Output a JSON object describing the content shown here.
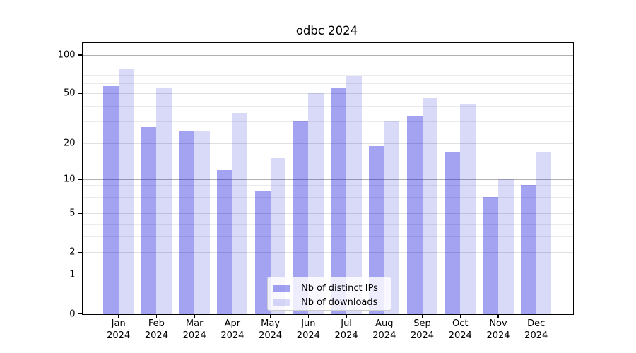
{
  "chart_data": {
    "type": "bar",
    "title": "odbc 2024",
    "categories": [
      "Jan",
      "Feb",
      "Mar",
      "Apr",
      "May",
      "Jun",
      "Jul",
      "Aug",
      "Sep",
      "Oct",
      "Nov",
      "Dec"
    ],
    "xtick_sublabel": "2024",
    "series": [
      {
        "name": "Nb of distinct IPs",
        "color": "rgba(0,0,220,0.36)",
        "color_hex_on_white": "#a3a3f2",
        "values": [
          57,
          27,
          25,
          12,
          8,
          30,
          55,
          19,
          33,
          17,
          7,
          9
        ]
      },
      {
        "name": "Nb of downloads",
        "color": "rgba(0,0,210,0.15)",
        "color_hex_on_white": "#d8d8f8",
        "values": [
          78,
          55,
          25,
          35,
          15,
          50,
          68,
          30,
          46,
          41,
          10,
          17
        ]
      }
    ],
    "yscale": "log1p",
    "ylim": [
      0,
      126
    ],
    "yticks": [
      0,
      1,
      2,
      5,
      10,
      20,
      50,
      100
    ],
    "ytick_labels": [
      "0",
      "1",
      "2",
      "5",
      "10",
      "20",
      "50",
      "100"
    ],
    "yticks_minor": [
      3,
      4,
      6,
      7,
      8,
      9,
      30,
      40,
      60,
      70,
      80,
      90
    ],
    "grid": "both",
    "legend_position": "lower center",
    "colors": {
      "axis": "#000000",
      "text": "#000000",
      "grid_decade": "#b0b0b0",
      "grid_major": "#e0e0e0",
      "grid_minor": "#ebebeb",
      "legend_border": "#cccccc",
      "background": "#ffffff"
    }
  }
}
